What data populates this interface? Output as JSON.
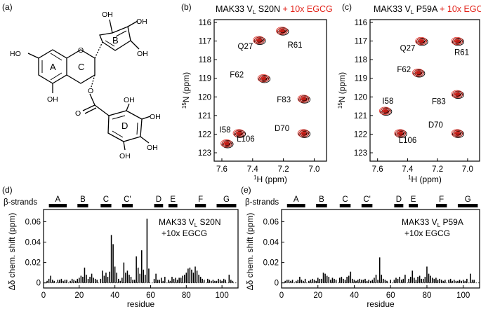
{
  "panel_labels": {
    "a": "(a)",
    "b": "(b)",
    "c": "(c)",
    "d": "(d)",
    "e": "(e)"
  },
  "molecule": {
    "name": "EGCG",
    "ring_labels": {
      "A": "A",
      "B": "B",
      "C": "C",
      "D": "D"
    },
    "atom_labels": {
      "O": "O",
      "OH": "OH",
      "HO": "HO"
    }
  },
  "colors": {
    "complex": "#e2231a",
    "free": "#000000",
    "bar": "#000000"
  },
  "hsqc_panels": [
    {
      "id": "b",
      "title_main": "MAK33 V",
      "title_sub": "L",
      "title_mut": " S20N",
      "title_add": " + 10x EGCG",
      "xlabel_pre": "1",
      "xlabel": "H (ppm)",
      "ylabel_pre": "15",
      "ylabel": "N (ppm)",
      "xticks": [
        "7.6",
        "7.4",
        "7.2",
        "7.0"
      ],
      "yticks": [
        "116",
        "117",
        "118",
        "119",
        "120",
        "121",
        "122",
        "123"
      ],
      "peaks": [
        {
          "label": "Q27",
          "h": 7.36,
          "n": 116.95
        },
        {
          "label": "R61",
          "h": 7.21,
          "n": 116.45
        },
        {
          "label": "F62",
          "h": 7.33,
          "n": 119.0
        },
        {
          "label": "F83",
          "h": 7.07,
          "n": 120.1
        },
        {
          "label": "D70",
          "h": 7.07,
          "n": 121.95
        },
        {
          "label": "L106",
          "h": 7.49,
          "n": 121.95
        },
        {
          "label": "I58",
          "h": 7.57,
          "n": 122.5
        }
      ]
    },
    {
      "id": "c",
      "title_main": "MAK33 V",
      "title_sub": "L",
      "title_mut": " P59A",
      "title_add": " + 10x EGCG",
      "xlabel_pre": "1",
      "xlabel": "H (ppm)",
      "ylabel_pre": "15",
      "ylabel": "N (ppm)",
      "xticks": [
        "7.6",
        "7.4",
        "7.2",
        "7.0"
      ],
      "yticks": [
        "116",
        "117",
        "118",
        "119",
        "120",
        "121",
        "122",
        "123"
      ],
      "peaks": [
        {
          "label": "Q27",
          "h": 7.31,
          "n": 117.0
        },
        {
          "label": "R61",
          "h": 7.07,
          "n": 117.0
        },
        {
          "label": "F62",
          "h": 7.33,
          "n": 118.7
        },
        {
          "label": "I58",
          "h": 7.55,
          "n": 120.75
        },
        {
          "label": "F83",
          "h": 7.07,
          "n": 119.85
        },
        {
          "label": "D70",
          "h": 7.07,
          "n": 121.95
        },
        {
          "label": "L106",
          "h": 7.45,
          "n": 121.95
        }
      ]
    }
  ],
  "csp_panels": [
    {
      "id": "d",
      "annotation_main": "MAK33 V",
      "annotation_sub": "L",
      "annotation_mut": " S20N",
      "annotation_line2": "+10x EGCG",
      "strands_label": "β-strands",
      "ylabel": "Δδ chem. shift (ppm)",
      "xlabel": "residue",
      "xticks": [
        "0",
        "20",
        "40",
        "60",
        "80",
        "100"
      ],
      "yticks": [
        "0",
        "0.02",
        "0.04",
        "0.06"
      ]
    },
    {
      "id": "e",
      "annotation_main": "MAK33 V",
      "annotation_sub": "L",
      "annotation_mut": " P59A",
      "annotation_line2": "+10x EGCG",
      "strands_label": "β-strands",
      "ylabel": "Δδ chem. shift (ppm)",
      "xlabel": "residue",
      "xticks": [
        "0",
        "20",
        "40",
        "60",
        "80",
        "100"
      ],
      "yticks": [
        "0",
        "0.02",
        "0.04",
        "0.06"
      ]
    }
  ],
  "chart_data": [
    {
      "type": "bar",
      "panel": "d",
      "xlabel": "residue",
      "ylabel": "Δδ chem. shift (ppm)",
      "xlim": [
        0,
        109
      ],
      "ylim": [
        -0.005,
        0.072
      ],
      "strands": [
        {
          "name": "A",
          "start": 3,
          "end": 13
        },
        {
          "name": "B",
          "start": 19,
          "end": 25
        },
        {
          "name": "C",
          "start": 32,
          "end": 38
        },
        {
          "name": "C'",
          "start": 44,
          "end": 50
        },
        {
          "name": "D",
          "start": 62,
          "end": 67
        },
        {
          "name": "E",
          "start": 70,
          "end": 75
        },
        {
          "name": "F",
          "start": 85,
          "end": 91
        },
        {
          "name": "G",
          "start": 97,
          "end": 108
        }
      ],
      "x": [
        2,
        3,
        4,
        5,
        6,
        8,
        9,
        10,
        11,
        12,
        13,
        15,
        16,
        17,
        18,
        19,
        20,
        21,
        22,
        23,
        24,
        25,
        26,
        27,
        28,
        29,
        30,
        32,
        33,
        34,
        35,
        36,
        37,
        38,
        39,
        40,
        41,
        42,
        43,
        44,
        45,
        46,
        47,
        48,
        49,
        50,
        51,
        52,
        53,
        54,
        55,
        56,
        57,
        58,
        59,
        62,
        63,
        64,
        65,
        66,
        67,
        68,
        70,
        71,
        72,
        73,
        74,
        75,
        76,
        77,
        78,
        79,
        80,
        81,
        82,
        83,
        84,
        85,
        86,
        87,
        88,
        89,
        90,
        92,
        93,
        94,
        95,
        96,
        97,
        98,
        99,
        100,
        101,
        102,
        104,
        105,
        106
      ],
      "values": [
        0.002,
        0.004,
        0.007,
        0.003,
        0.002,
        0.003,
        0.003,
        0.004,
        0.002,
        0.003,
        0.003,
        0.002,
        0.004,
        0.003,
        0.002,
        0.004,
        0.005,
        0.007,
        0.006,
        0.015,
        0.008,
        0.004,
        0.006,
        0.009,
        0.005,
        0.004,
        0.003,
        0.004,
        0.012,
        0.007,
        0.01,
        0.006,
        0.011,
        0.047,
        0.038,
        0.016,
        0.01,
        0.004,
        0.002,
        0.005,
        0.02,
        0.01,
        0.012,
        0.008,
        0.006,
        0.003,
        0.003,
        0.026,
        0.015,
        0.009,
        0.032,
        0.013,
        0.008,
        0.063,
        0.014,
        0.004,
        0.009,
        0.003,
        0.003,
        0.005,
        0.002,
        0.006,
        0.003,
        0.002,
        0.006,
        0.004,
        0.005,
        0.003,
        0.005,
        0.005,
        0.007,
        0.008,
        0.01,
        0.014,
        0.015,
        0.013,
        0.01,
        0.016,
        0.012,
        0.008,
        0.006,
        0.004,
        0.003,
        0.004,
        0.003,
        0.002,
        0.003,
        0.002,
        0.002,
        0.004,
        0.003,
        0.002,
        0.004,
        0.003,
        0.008,
        0.003,
        0.002
      ]
    },
    {
      "type": "bar",
      "panel": "e",
      "xlabel": "residue",
      "ylabel": "Δδ chem. shift (ppm)",
      "xlim": [
        0,
        109
      ],
      "ylim": [
        -0.005,
        0.072
      ],
      "strands": [
        {
          "name": "A",
          "start": 3,
          "end": 13
        },
        {
          "name": "B",
          "start": 19,
          "end": 25
        },
        {
          "name": "C",
          "start": 32,
          "end": 38
        },
        {
          "name": "C'",
          "start": 44,
          "end": 50
        },
        {
          "name": "D",
          "start": 62,
          "end": 67
        },
        {
          "name": "E",
          "start": 70,
          "end": 75
        },
        {
          "name": "F",
          "start": 85,
          "end": 91
        },
        {
          "name": "G",
          "start": 97,
          "end": 108
        }
      ],
      "x": [
        2,
        3,
        4,
        5,
        6,
        8,
        9,
        10,
        11,
        12,
        13,
        15,
        16,
        17,
        18,
        19,
        20,
        21,
        22,
        23,
        24,
        25,
        26,
        27,
        28,
        29,
        30,
        32,
        33,
        34,
        35,
        36,
        37,
        38,
        39,
        40,
        41,
        42,
        43,
        44,
        45,
        46,
        47,
        48,
        49,
        50,
        51,
        52,
        53,
        54,
        55,
        56,
        57,
        58,
        60,
        62,
        63,
        64,
        65,
        66,
        67,
        68,
        70,
        71,
        72,
        73,
        74,
        75,
        76,
        77,
        78,
        79,
        80,
        81,
        82,
        83,
        84,
        85,
        86,
        87,
        88,
        89,
        90,
        92,
        93,
        94,
        95,
        96,
        97,
        98,
        99,
        100,
        101,
        102,
        104,
        105,
        106
      ],
      "values": [
        0.002,
        0.003,
        0.003,
        0.002,
        0.003,
        0.002,
        0.003,
        0.006,
        0.003,
        0.002,
        0.004,
        0.002,
        0.003,
        0.004,
        0.003,
        0.002,
        0.005,
        0.004,
        0.004,
        0.01,
        0.009,
        0.007,
        0.006,
        0.003,
        0.005,
        0.004,
        0.003,
        0.005,
        0.006,
        0.004,
        0.003,
        0.006,
        0.007,
        0.011,
        0.004,
        0.003,
        0.002,
        0.003,
        0.004,
        0.003,
        0.003,
        0.004,
        0.002,
        0.003,
        0.002,
        0.003,
        0.005,
        0.008,
        0.003,
        0.025,
        0.008,
        0.004,
        0.003,
        0.002,
        0.003,
        0.003,
        0.005,
        0.004,
        0.006,
        0.003,
        0.004,
        0.008,
        0.004,
        0.006,
        0.012,
        0.005,
        0.003,
        0.006,
        0.007,
        0.004,
        0.004,
        0.006,
        0.016,
        0.009,
        0.007,
        0.005,
        0.004,
        0.005,
        0.003,
        0.004,
        0.003,
        0.002,
        0.003,
        0.003,
        0.004,
        0.002,
        0.003,
        0.002,
        0.002,
        0.003,
        0.002,
        0.003,
        0.002,
        0.004,
        0.009,
        0.003,
        0.003
      ]
    }
  ]
}
